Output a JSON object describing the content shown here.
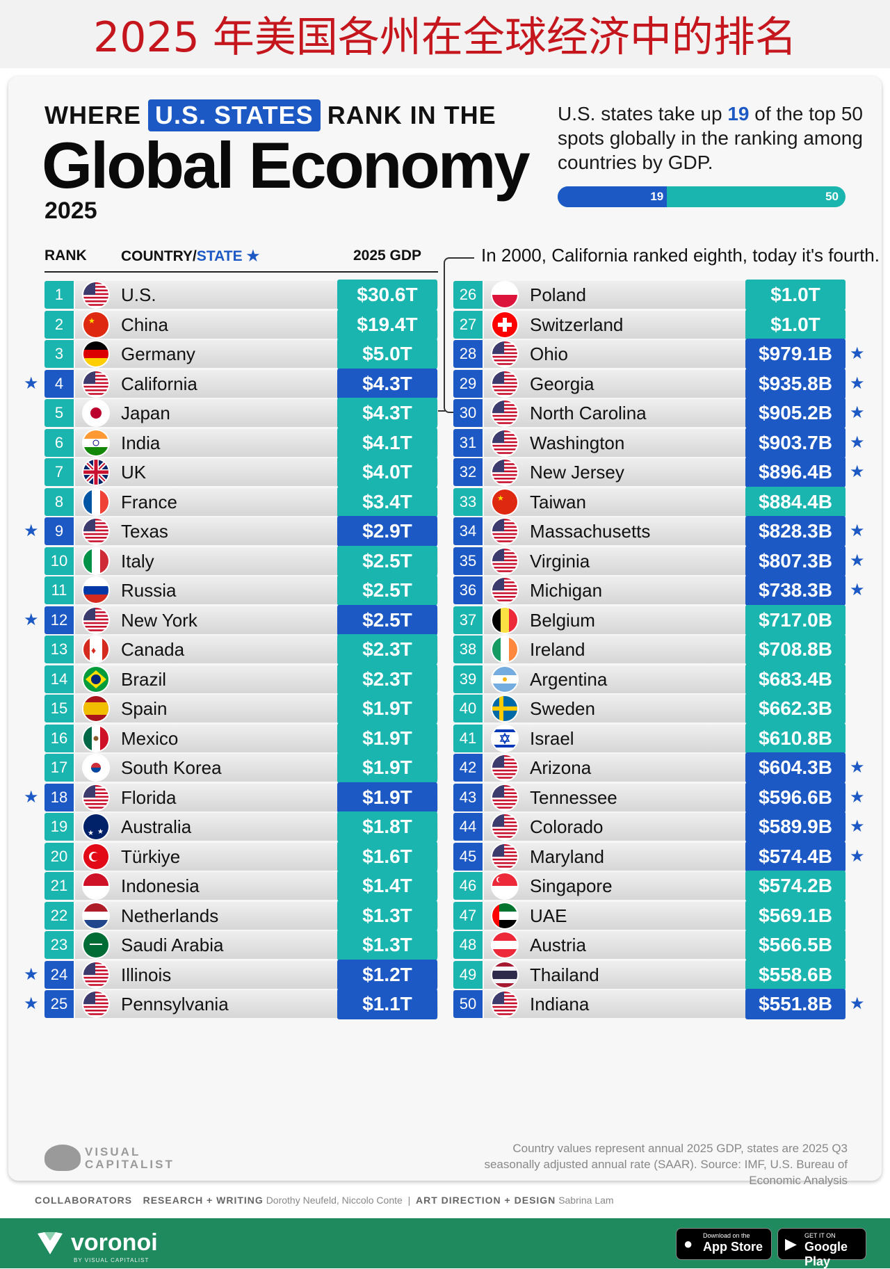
{
  "banner_title": "2025 年美国各州在全球经济中的排名",
  "header": {
    "prefix": "WHERE",
    "pill": "U.S. STATES",
    "suffix": "RANK IN THE",
    "main_title": "Global Economy",
    "year": "2025",
    "stat_pre": "U.S. states take up",
    "stat_num": "19",
    "stat_post": "of the top 50 spots globally in the ranking among countries by GDP.",
    "bar_label_a": "19",
    "bar_label_b": "50"
  },
  "columns": {
    "rank": "RANK",
    "country": "COUNTRY/",
    "state": "STATE",
    "star": "★",
    "gdp": "2025 GDP"
  },
  "california_note": "In 2000, California ranked eighth, today it's fourth.",
  "footnote": "Country values represent annual 2025 GDP, states are 2025 Q3 seasonally adjusted annual rate (SAAR). Source: IMF, U.S. Bureau of Economic Analysis",
  "brand": {
    "vc": "VISUAL CAPITALIST"
  },
  "collaborators": {
    "label": "COLLABORATORS",
    "research_label": "RESEARCH + WRITING",
    "research_names": "Dorothy Neufeld, Niccolo Conte",
    "art_label": "ART DIRECTION + DESIGN",
    "art_names": "Sabrina Lam"
  },
  "footer": {
    "voronoi": "voronoi",
    "voronoi_sub": "BY VISUAL CAPITALIST",
    "appstore_small": "Download on the",
    "appstore_big": "App Store",
    "play_small": "GET IT ON",
    "play_big": "Google Play"
  },
  "colors": {
    "country": "#1ab5ae",
    "state": "#1d59c4",
    "title_red": "#c4161c",
    "footer_green": "#1f8a5e"
  },
  "chart_data": {
    "type": "table",
    "unit": "USD",
    "rows": [
      {
        "rank": 1,
        "name": "U.S.",
        "gdp": "$30.6T",
        "value_billions": 30600,
        "state": false,
        "flag": "us"
      },
      {
        "rank": 2,
        "name": "China",
        "gdp": "$19.4T",
        "value_billions": 19400,
        "state": false,
        "flag": "cn"
      },
      {
        "rank": 3,
        "name": "Germany",
        "gdp": "$5.0T",
        "value_billions": 5000,
        "state": false,
        "flag": "de"
      },
      {
        "rank": 4,
        "name": "California",
        "gdp": "$4.3T",
        "value_billions": 4300,
        "state": true,
        "flag": "us"
      },
      {
        "rank": 5,
        "name": "Japan",
        "gdp": "$4.3T",
        "value_billions": 4300,
        "state": false,
        "flag": "jp"
      },
      {
        "rank": 6,
        "name": "India",
        "gdp": "$4.1T",
        "value_billions": 4100,
        "state": false,
        "flag": "in"
      },
      {
        "rank": 7,
        "name": "UK",
        "gdp": "$4.0T",
        "value_billions": 4000,
        "state": false,
        "flag": "gb"
      },
      {
        "rank": 8,
        "name": "France",
        "gdp": "$3.4T",
        "value_billions": 3400,
        "state": false,
        "flag": "fr"
      },
      {
        "rank": 9,
        "name": "Texas",
        "gdp": "$2.9T",
        "value_billions": 2900,
        "state": true,
        "flag": "us"
      },
      {
        "rank": 10,
        "name": "Italy",
        "gdp": "$2.5T",
        "value_billions": 2500,
        "state": false,
        "flag": "it"
      },
      {
        "rank": 11,
        "name": "Russia",
        "gdp": "$2.5T",
        "value_billions": 2500,
        "state": false,
        "flag": "ru"
      },
      {
        "rank": 12,
        "name": "New York",
        "gdp": "$2.5T",
        "value_billions": 2500,
        "state": true,
        "flag": "us"
      },
      {
        "rank": 13,
        "name": "Canada",
        "gdp": "$2.3T",
        "value_billions": 2300,
        "state": false,
        "flag": "ca"
      },
      {
        "rank": 14,
        "name": "Brazil",
        "gdp": "$2.3T",
        "value_billions": 2300,
        "state": false,
        "flag": "br"
      },
      {
        "rank": 15,
        "name": "Spain",
        "gdp": "$1.9T",
        "value_billions": 1900,
        "state": false,
        "flag": "es"
      },
      {
        "rank": 16,
        "name": "Mexico",
        "gdp": "$1.9T",
        "value_billions": 1900,
        "state": false,
        "flag": "mx"
      },
      {
        "rank": 17,
        "name": "South Korea",
        "gdp": "$1.9T",
        "value_billions": 1900,
        "state": false,
        "flag": "kr"
      },
      {
        "rank": 18,
        "name": "Florida",
        "gdp": "$1.9T",
        "value_billions": 1900,
        "state": true,
        "flag": "us"
      },
      {
        "rank": 19,
        "name": "Australia",
        "gdp": "$1.8T",
        "value_billions": 1800,
        "state": false,
        "flag": "au"
      },
      {
        "rank": 20,
        "name": "Türkiye",
        "gdp": "$1.6T",
        "value_billions": 1600,
        "state": false,
        "flag": "tr"
      },
      {
        "rank": 21,
        "name": "Indonesia",
        "gdp": "$1.4T",
        "value_billions": 1400,
        "state": false,
        "flag": "id"
      },
      {
        "rank": 22,
        "name": "Netherlands",
        "gdp": "$1.3T",
        "value_billions": 1300,
        "state": false,
        "flag": "nl"
      },
      {
        "rank": 23,
        "name": "Saudi Arabia",
        "gdp": "$1.3T",
        "value_billions": 1300,
        "state": false,
        "flag": "sa"
      },
      {
        "rank": 24,
        "name": "Illinois",
        "gdp": "$1.2T",
        "value_billions": 1200,
        "state": true,
        "flag": "us"
      },
      {
        "rank": 25,
        "name": "Pennsylvania",
        "gdp": "$1.1T",
        "value_billions": 1100,
        "state": true,
        "flag": "us"
      },
      {
        "rank": 26,
        "name": "Poland",
        "gdp": "$1.0T",
        "value_billions": 1000,
        "state": false,
        "flag": "pl"
      },
      {
        "rank": 27,
        "name": "Switzerland",
        "gdp": "$1.0T",
        "value_billions": 1000,
        "state": false,
        "flag": "ch"
      },
      {
        "rank": 28,
        "name": "Ohio",
        "gdp": "$979.1B",
        "value_billions": 979.1,
        "state": true,
        "flag": "us"
      },
      {
        "rank": 29,
        "name": "Georgia",
        "gdp": "$935.8B",
        "value_billions": 935.8,
        "state": true,
        "flag": "us"
      },
      {
        "rank": 30,
        "name": "North Carolina",
        "gdp": "$905.2B",
        "value_billions": 905.2,
        "state": true,
        "flag": "us"
      },
      {
        "rank": 31,
        "name": "Washington",
        "gdp": "$903.7B",
        "value_billions": 903.7,
        "state": true,
        "flag": "us"
      },
      {
        "rank": 32,
        "name": "New Jersey",
        "gdp": "$896.4B",
        "value_billions": 896.4,
        "state": true,
        "flag": "us"
      },
      {
        "rank": 33,
        "name": "Taiwan",
        "gdp": "$884.4B",
        "value_billions": 884.4,
        "state": false,
        "flag": "tw"
      },
      {
        "rank": 34,
        "name": "Massachusetts",
        "gdp": "$828.3B",
        "value_billions": 828.3,
        "state": true,
        "flag": "us"
      },
      {
        "rank": 35,
        "name": "Virginia",
        "gdp": "$807.3B",
        "value_billions": 807.3,
        "state": true,
        "flag": "us"
      },
      {
        "rank": 36,
        "name": "Michigan",
        "gdp": "$738.3B",
        "value_billions": 738.3,
        "state": true,
        "flag": "us"
      },
      {
        "rank": 37,
        "name": "Belgium",
        "gdp": "$717.0B",
        "value_billions": 717.0,
        "state": false,
        "flag": "be"
      },
      {
        "rank": 38,
        "name": "Ireland",
        "gdp": "$708.8B",
        "value_billions": 708.8,
        "state": false,
        "flag": "ie"
      },
      {
        "rank": 39,
        "name": "Argentina",
        "gdp": "$683.4B",
        "value_billions": 683.4,
        "state": false,
        "flag": "ar"
      },
      {
        "rank": 40,
        "name": "Sweden",
        "gdp": "$662.3B",
        "value_billions": 662.3,
        "state": false,
        "flag": "se"
      },
      {
        "rank": 41,
        "name": "Israel",
        "gdp": "$610.8B",
        "value_billions": 610.8,
        "state": false,
        "flag": "il"
      },
      {
        "rank": 42,
        "name": "Arizona",
        "gdp": "$604.3B",
        "value_billions": 604.3,
        "state": true,
        "flag": "us"
      },
      {
        "rank": 43,
        "name": "Tennessee",
        "gdp": "$596.6B",
        "value_billions": 596.6,
        "state": true,
        "flag": "us"
      },
      {
        "rank": 44,
        "name": "Colorado",
        "gdp": "$589.9B",
        "value_billions": 589.9,
        "state": true,
        "flag": "us"
      },
      {
        "rank": 45,
        "name": "Maryland",
        "gdp": "$574.4B",
        "value_billions": 574.4,
        "state": true,
        "flag": "us"
      },
      {
        "rank": 46,
        "name": "Singapore",
        "gdp": "$574.2B",
        "value_billions": 574.2,
        "state": false,
        "flag": "sg"
      },
      {
        "rank": 47,
        "name": "UAE",
        "gdp": "$569.1B",
        "value_billions": 569.1,
        "state": false,
        "flag": "ae"
      },
      {
        "rank": 48,
        "name": "Austria",
        "gdp": "$566.5B",
        "value_billions": 566.5,
        "state": false,
        "flag": "at"
      },
      {
        "rank": 49,
        "name": "Thailand",
        "gdp": "$558.6B",
        "value_billions": 558.6,
        "state": false,
        "flag": "th"
      },
      {
        "rank": 50,
        "name": "Indiana",
        "gdp": "$551.8B",
        "value_billions": 551.8,
        "state": true,
        "flag": "us"
      }
    ]
  }
}
